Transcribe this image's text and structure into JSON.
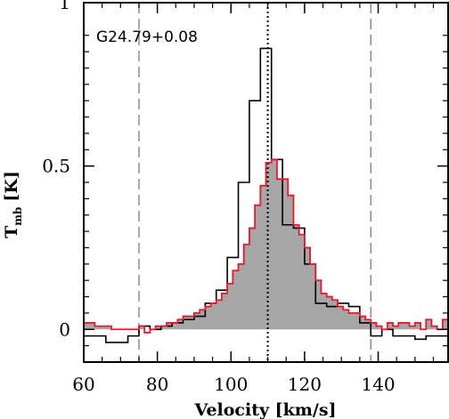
{
  "chart_data": {
    "type": "line",
    "annotation": "G24.79+0.08",
    "xlabel": "Velocity [km/s]",
    "ylabel_main": "T",
    "ylabel_sub": "mb",
    "ylabel_unit": "[K]",
    "xlim": [
      60,
      159
    ],
    "ylim": [
      -0.1,
      1.0
    ],
    "xticks": [
      60,
      80,
      100,
      120,
      140
    ],
    "xtick_labels": [
      "60",
      "80",
      "100",
      "120",
      "140"
    ],
    "yticks": [
      0,
      0.5,
      1
    ],
    "ytick_labels": [
      "0",
      "0.5",
      "1"
    ],
    "grid": false,
    "colors": {
      "filled_series": "#e8192c",
      "fill": "#a6a6a6",
      "black_series": "#000000"
    },
    "vlines": [
      {
        "x": 110,
        "style": "dotted",
        "color": "#000000"
      },
      {
        "x": 75,
        "style": "dashed",
        "color": "#8c8c8c"
      },
      {
        "x": 138,
        "style": "dashed",
        "color": "#8c8c8c"
      }
    ],
    "series": [
      {
        "style": "black-step",
        "bin_width": 3,
        "x": [
          61.5,
          64.5,
          67.5,
          70.5,
          73.5,
          76.5,
          79.5,
          82.5,
          85.5,
          88.5,
          91.5,
          94.5,
          97.5,
          100.5,
          103.5,
          106.5,
          109.5,
          112.5,
          115.5,
          118.5,
          121.5,
          124.5,
          127.5,
          130.5,
          133.5,
          136.5,
          139.5,
          142.5,
          145.5,
          148.5,
          151.5,
          154.5,
          157.5
        ],
        "y": [
          -0.02,
          -0.02,
          -0.04,
          -0.04,
          -0.02,
          0.01,
          0.0,
          0.01,
          0.02,
          0.03,
          0.04,
          0.08,
          0.12,
          0.22,
          0.45,
          0.7,
          0.86,
          0.52,
          0.32,
          0.31,
          0.2,
          0.08,
          0.07,
          0.08,
          0.07,
          0.02,
          -0.02,
          0.0,
          -0.02,
          -0.02,
          -0.03,
          -0.02,
          -0.02
        ]
      },
      {
        "style": "red-step-filled",
        "bin_width": 1.5,
        "x": [
          60.75,
          62.25,
          63.75,
          65.25,
          66.75,
          68.25,
          69.75,
          71.25,
          72.75,
          74.25,
          75.75,
          77.25,
          78.75,
          80.25,
          81.75,
          83.25,
          84.75,
          86.25,
          87.75,
          89.25,
          90.75,
          92.25,
          93.75,
          95.25,
          96.75,
          98.25,
          99.75,
          101.25,
          102.75,
          104.25,
          105.75,
          107.25,
          108.75,
          110.25,
          111.75,
          113.25,
          114.75,
          116.25,
          117.75,
          119.25,
          120.75,
          122.25,
          123.75,
          125.25,
          126.75,
          128.25,
          129.75,
          131.25,
          132.75,
          134.25,
          135.75,
          137.25,
          138.75,
          140.25,
          141.75,
          143.25,
          144.75,
          146.25,
          147.75,
          149.25,
          150.75,
          152.25,
          153.75,
          155.25,
          156.75,
          158.25
        ],
        "y": [
          0.02,
          0.02,
          0.01,
          0.01,
          0.01,
          0.0,
          0.0,
          0.0,
          0.0,
          0.0,
          0.01,
          -0.01,
          0.0,
          0.01,
          0.01,
          0.02,
          0.02,
          0.03,
          0.04,
          0.04,
          0.05,
          0.06,
          0.07,
          0.08,
          0.09,
          0.11,
          0.14,
          0.18,
          0.2,
          0.26,
          0.31,
          0.38,
          0.44,
          0.51,
          0.52,
          0.46,
          0.46,
          0.41,
          0.32,
          0.29,
          0.25,
          0.2,
          0.15,
          0.11,
          0.1,
          0.09,
          0.07,
          0.06,
          0.05,
          0.05,
          0.04,
          0.03,
          0.02,
          0.01,
          0.0,
          0.02,
          0.01,
          0.02,
          0.02,
          0.01,
          0.02,
          0.0,
          0.03,
          0.01,
          0.0,
          0.03
        ]
      }
    ]
  }
}
